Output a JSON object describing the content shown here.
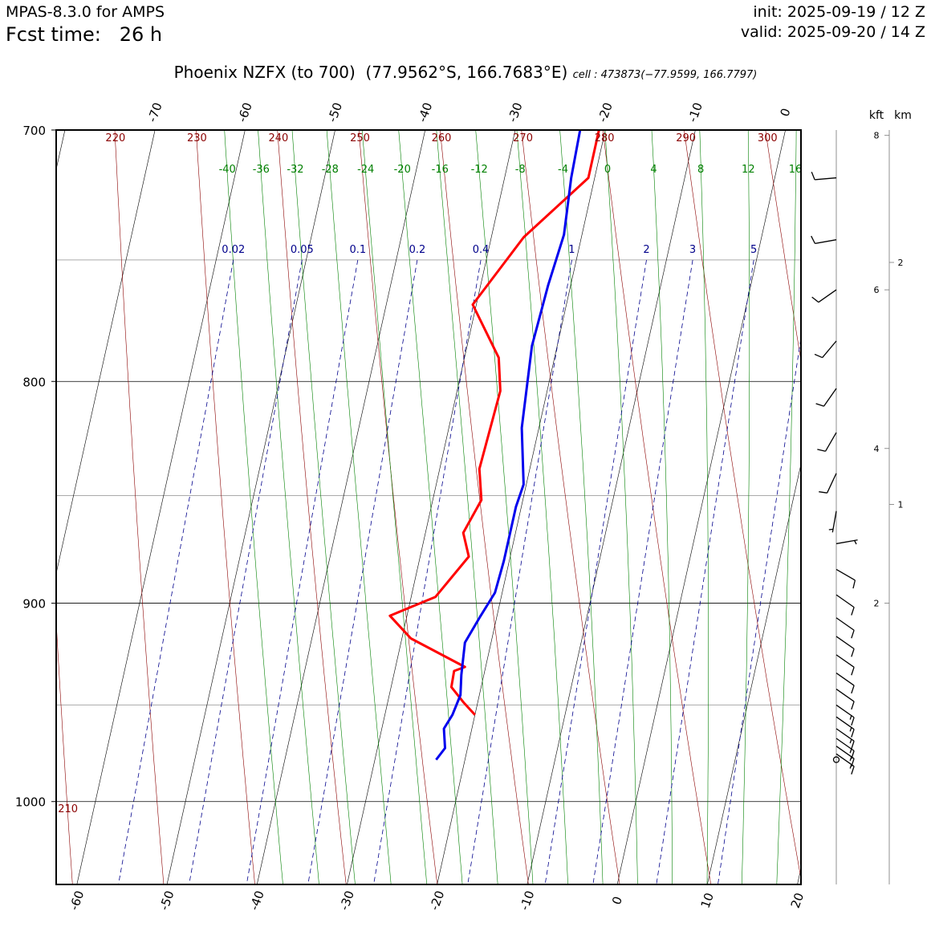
{
  "header": {
    "model": "MPAS-8.3.0 for AMPS",
    "fcst_label": "Fcst time:",
    "fcst_value": "26 h",
    "init": "init: 2025-09-19 / 12 Z",
    "valid": "valid: 2025-09-20 / 14 Z"
  },
  "title": {
    "station": "Phoenix NZFX (to 700)",
    "coords": "(77.9562°S, 166.7683°E)",
    "cell": "cell : 473873(−77.9599, 166.7797)"
  },
  "chart_data": {
    "type": "skew-t",
    "ylim_hpa": [
      1045,
      700
    ],
    "xlim_bottom_c": [
      -62.3,
      20.4
    ],
    "skew_c_per_log10p": 107.3,
    "pressure_axis": {
      "ticks": [
        700,
        800,
        900,
        1000
      ],
      "labels": [
        "700",
        "800",
        "900",
        "1000"
      ],
      "minor_gridlines": [
        750,
        850,
        950
      ]
    },
    "isotherm_labels_bottom": [
      -60,
      -50,
      -40,
      -30,
      -20,
      -10,
      0,
      10,
      20
    ],
    "isotherm_labels_top": [
      -70,
      -60,
      -50,
      -40,
      -30,
      -20,
      -10,
      0
    ],
    "isotherm_values": [
      -100,
      -90,
      -80,
      -70,
      -60,
      -50,
      -40,
      -30,
      -20,
      -10,
      0,
      10,
      20
    ],
    "dry_adiabats_k": [
      210,
      220,
      230,
      240,
      250,
      260,
      270,
      280,
      290,
      300,
      310
    ],
    "dry_adiabat_labels_top": [
      "220",
      "230",
      "240",
      "250",
      "260",
      "270",
      "280",
      "290",
      "300"
    ],
    "dry_adiabat_label_bottom": "210",
    "moist_adiabats_c": [
      -40,
      -36,
      -32,
      -28,
      -24,
      -20,
      -16,
      -12,
      -8,
      -4,
      0,
      4,
      8,
      12,
      16
    ],
    "moist_adiabat_labels": [
      "-40",
      "-36",
      "-32",
      "-28",
      "-24",
      "-20",
      "-16",
      "-12",
      "-8",
      "-4",
      "0",
      "4",
      "8",
      "12",
      "16"
    ],
    "mixing_ratios_gkg": [
      0.02,
      0.05,
      0.1,
      0.2,
      0.4,
      1,
      2,
      3,
      5
    ],
    "mixing_ratio_labels": [
      "0.02",
      "0.05",
      "0.1",
      "0.2",
      "0.4",
      "1",
      "2",
      "3",
      "5"
    ],
    "series": [
      {
        "variable": "temperature",
        "color": "#ff0000",
        "points": [
          [
            700,
            -20.7
          ],
          [
            718,
            -20.7
          ],
          [
            741,
            -26.4
          ],
          [
            768,
            -30.4
          ],
          [
            790,
            -26.2
          ],
          [
            804,
            -25.2
          ],
          [
            838,
            -25.6
          ],
          [
            852,
            -24.6
          ],
          [
            867,
            -25.8
          ],
          [
            878,
            -24.6
          ],
          [
            897,
            -27.3
          ],
          [
            906,
            -31.9
          ],
          [
            917,
            -29.0
          ],
          [
            931,
            -22.3
          ],
          [
            933,
            -23.4
          ],
          [
            941,
            -23.3
          ],
          [
            949,
            -21.5
          ],
          [
            955,
            -20.0
          ]
        ]
      },
      {
        "variable": "dewpoint",
        "color": "#0000ee",
        "points": [
          [
            700,
            -22.8
          ],
          [
            718,
            -22.6
          ],
          [
            740,
            -22.0
          ],
          [
            760,
            -22.5
          ],
          [
            785,
            -22.8
          ],
          [
            820,
            -21.9
          ],
          [
            845,
            -20.3
          ],
          [
            855,
            -20.6
          ],
          [
            880,
            -20.6
          ],
          [
            895,
            -20.8
          ],
          [
            907,
            -21.9
          ],
          [
            919,
            -22.9
          ],
          [
            935,
            -22.5
          ],
          [
            945,
            -22.1
          ],
          [
            955,
            -22.5
          ],
          [
            962,
            -23.1
          ],
          [
            972,
            -22.5
          ],
          [
            978,
            -23.2
          ]
        ]
      }
    ],
    "wind_barbs": [
      {
        "p": 718,
        "dir": 265,
        "spd": 10
      },
      {
        "p": 742,
        "dir": 260,
        "spd": 10
      },
      {
        "p": 762,
        "dir": 235,
        "spd": 10
      },
      {
        "p": 783,
        "dir": 220,
        "spd": 10
      },
      {
        "p": 803,
        "dir": 215,
        "spd": 10
      },
      {
        "p": 822,
        "dir": 210,
        "spd": 10
      },
      {
        "p": 840,
        "dir": 205,
        "spd": 10
      },
      {
        "p": 857,
        "dir": 190,
        "spd": 5
      },
      {
        "p": 872,
        "dir": 80,
        "spd": 5
      },
      {
        "p": 884,
        "dir": 120,
        "spd": 10
      },
      {
        "p": 896,
        "dir": 125,
        "spd": 10
      },
      {
        "p": 907,
        "dir": 125,
        "spd": 10
      },
      {
        "p": 916,
        "dir": 125,
        "spd": 10
      },
      {
        "p": 925,
        "dir": 125,
        "spd": 10
      },
      {
        "p": 934,
        "dir": 125,
        "spd": 10
      },
      {
        "p": 942,
        "dir": 125,
        "spd": 10
      },
      {
        "p": 950,
        "dir": 125,
        "spd": 15
      },
      {
        "p": 956,
        "dir": 125,
        "spd": 15
      },
      {
        "p": 962,
        "dir": 125,
        "spd": 15
      },
      {
        "p": 967,
        "dir": 125,
        "spd": 15
      },
      {
        "p": 971,
        "dir": 125,
        "spd": 15
      },
      {
        "p": 975,
        "dir": 125,
        "spd": 15
      },
      {
        "p": 978,
        "dir": 0,
        "spd": 0
      }
    ],
    "height_axes": {
      "kft_label": "kft",
      "km_label": "km",
      "kft_ticks": [
        {
          "p": 702,
          "label": "8"
        },
        {
          "p": 762,
          "label": "6"
        },
        {
          "p": 829,
          "label": "4"
        },
        {
          "p": 900,
          "label": "2"
        }
      ],
      "km_ticks": [
        {
          "p": 751,
          "label": "2"
        },
        {
          "p": 854,
          "label": "1"
        }
      ]
    },
    "colors": {
      "isotherm": "#000000",
      "dry_adiabat": "#8b0000",
      "moist_adiabat": "#008000",
      "mixing_ratio": "#00008b",
      "isobar_major": "#000000",
      "isobar_minor": "#aaaaaa"
    }
  }
}
